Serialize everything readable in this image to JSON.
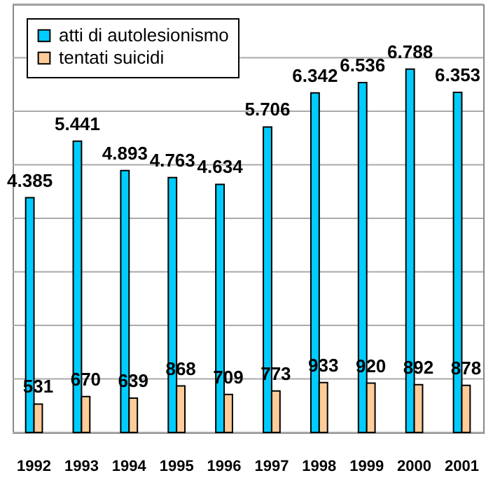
{
  "chart_data": {
    "type": "bar",
    "categories": [
      "1992",
      "1993",
      "1994",
      "1995",
      "1996",
      "1997",
      "1998",
      "1999",
      "2000",
      "2001"
    ],
    "series": [
      {
        "name": "atti di autolesionismo",
        "color": "#00ccff",
        "values": [
          4385,
          5441,
          4893,
          4763,
          4634,
          5706,
          6342,
          6536,
          6788,
          6353
        ],
        "value_labels": [
          "4.385",
          "5.441",
          "4.893",
          "4.763",
          "4.634",
          "5.706",
          "6.342",
          "6.536",
          "6.788",
          "6.353"
        ]
      },
      {
        "name": "tentati suicidi",
        "color": "#ffcc99",
        "values": [
          531,
          670,
          639,
          868,
          709,
          773,
          933,
          920,
          892,
          878
        ],
        "value_labels": [
          "531",
          "670",
          "639",
          "868",
          "709",
          "773",
          "933",
          "920",
          "892",
          "878"
        ]
      }
    ],
    "ylim": [
      0,
      8000
    ],
    "yticks": [
      {
        "value": 0,
        "label": null
      },
      {
        "value": 1000,
        "label": null
      },
      {
        "value": 2000,
        "label": null
      },
      {
        "value": 3000,
        "label": null
      },
      {
        "value": 4000,
        "label": null
      },
      {
        "value": 5000,
        "label": null
      },
      {
        "value": 6000,
        "label": null
      },
      {
        "value": 7000,
        "label": null
      },
      {
        "value": 8000,
        "label": null
      }
    ],
    "grid": "y",
    "legend": "top left",
    "tick_labels": "x"
  }
}
